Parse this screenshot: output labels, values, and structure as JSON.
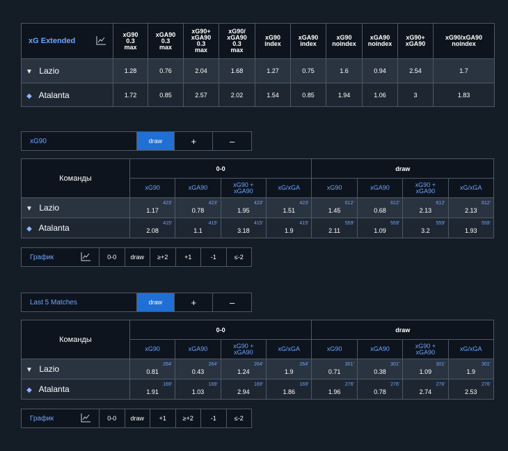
{
  "extended": {
    "title": "xG Extended",
    "columns": [
      "xG90\n0.3\nmax",
      "xGA90\n0.3\nmax",
      "xG90+\nxGA90\n0.3\nmax",
      "xG90/\nxGA90\n0.3\nmax",
      "xG90\nindex",
      "xGA90\nindex",
      "xG90\nnoindex",
      "xGA90\nnoindex",
      "xG90+\nxGA90",
      "xG90/xGA90\nnoindex"
    ],
    "rows": [
      {
        "team": "Lazio",
        "values": [
          "1.28",
          "0.76",
          "2.04",
          "1.68",
          "1.27",
          "0.75",
          "1.6",
          "0.94",
          "2.54",
          "1.7"
        ]
      },
      {
        "team": "Atalanta",
        "values": [
          "1.72",
          "0.85",
          "2.57",
          "2.02",
          "1.54",
          "0.85",
          "1.94",
          "1.06",
          "3",
          "1.83"
        ]
      }
    ]
  },
  "selector1": {
    "label": "xG90",
    "active": "draw",
    "plus": "+",
    "minus": "–"
  },
  "table1": {
    "teams_header": "Команды",
    "group1": "0-0",
    "group2": "draw",
    "cols": [
      "xG90",
      "xGA90",
      "xG90 +\nxGA90",
      "xG/xGA",
      "xG90",
      "xGA90",
      "xG90 +\nxGA90",
      "xG/xGA"
    ],
    "rows": [
      {
        "team": "Lazio",
        "cells": [
          [
            "1.17",
            "423'"
          ],
          [
            "0.78",
            "423'"
          ],
          [
            "1.95",
            "423'"
          ],
          [
            "1.51",
            "423'"
          ],
          [
            "1.45",
            "612'"
          ],
          [
            "0.68",
            "612'"
          ],
          [
            "2.13",
            "612'"
          ],
          [
            "2.13",
            "612'"
          ]
        ]
      },
      {
        "team": "Atalanta",
        "cells": [
          [
            "2.08",
            "415'"
          ],
          [
            "1.1",
            "415'"
          ],
          [
            "3.18",
            "415'"
          ],
          [
            "1.9",
            "415'"
          ],
          [
            "2.11",
            "559'"
          ],
          [
            "1.09",
            "559'"
          ],
          [
            "3.2",
            "559'"
          ],
          [
            "1.93",
            "559'"
          ]
        ]
      }
    ]
  },
  "filter1": {
    "label": "График",
    "options": [
      "0-0",
      "draw",
      "≥+2",
      "+1",
      "-1",
      "≤-2"
    ]
  },
  "selector2": {
    "label": "Last 5 Matches",
    "active": "draw",
    "plus": "+",
    "minus": "–"
  },
  "table2": {
    "teams_header": "Команды",
    "group1": "0-0",
    "group2": "draw",
    "cols": [
      "xG90",
      "xGA90",
      "xG90 +\nxGA90",
      "xG/xGA",
      "xG90",
      "xGA90",
      "xG90 +\nxGA90",
      "xG/xGA"
    ],
    "rows": [
      {
        "team": "Lazio",
        "cells": [
          [
            "0.81",
            "264'"
          ],
          [
            "0.43",
            "264'"
          ],
          [
            "1.24",
            "264'"
          ],
          [
            "1.9",
            "264'"
          ],
          [
            "0.71",
            "301'"
          ],
          [
            "0.38",
            "301'"
          ],
          [
            "1.09",
            "301'"
          ],
          [
            "1.9",
            "301'"
          ]
        ]
      },
      {
        "team": "Atalanta",
        "cells": [
          [
            "1.91",
            "169'"
          ],
          [
            "1.03",
            "169'"
          ],
          [
            "2.94",
            "169'"
          ],
          [
            "1.86",
            "169'"
          ],
          [
            "1.96",
            "276'"
          ],
          [
            "0.78",
            "276'"
          ],
          [
            "2.74",
            "276'"
          ],
          [
            "2.53",
            "276'"
          ]
        ]
      }
    ]
  },
  "filter2": {
    "label": "График",
    "options": [
      "0-0",
      "draw",
      "+1",
      "≥+2",
      "-1",
      "≤-2"
    ]
  },
  "icons": {
    "chart": "line-chart-icon",
    "lazio": "lazio-eagle-icon",
    "atalanta": "atalanta-crest-icon"
  },
  "colors": {
    "accent": "#6fa4ff",
    "active": "#1f6fd4",
    "bg": "#141c26"
  }
}
